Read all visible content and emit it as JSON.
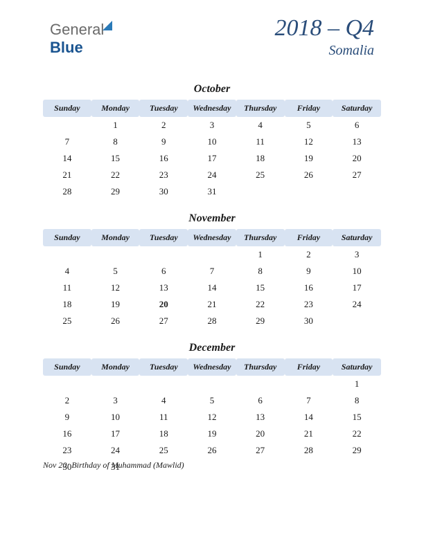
{
  "logo": {
    "part1": "General",
    "part2": "Blue"
  },
  "header": {
    "title": "2018 – Q4",
    "subtitle": "Somalia"
  },
  "dayHeaders": [
    "Sunday",
    "Monday",
    "Tuesday",
    "Wednesday",
    "Thursday",
    "Friday",
    "Saturday"
  ],
  "colors": {
    "header_bg": "#d8e3f2",
    "text": "#1a1a1a",
    "title": "#2a4d7a",
    "holiday": "#c62828",
    "page_bg": "#ffffff"
  },
  "months": [
    {
      "name": "October",
      "weeks": [
        [
          "",
          "1",
          "2",
          "3",
          "4",
          "5",
          "6"
        ],
        [
          "7",
          "8",
          "9",
          "10",
          "11",
          "12",
          "13"
        ],
        [
          "14",
          "15",
          "16",
          "17",
          "18",
          "19",
          "20"
        ],
        [
          "21",
          "22",
          "23",
          "24",
          "25",
          "26",
          "27"
        ],
        [
          "28",
          "29",
          "30",
          "31",
          "",
          "",
          ""
        ]
      ],
      "holidays": []
    },
    {
      "name": "November",
      "weeks": [
        [
          "",
          "",
          "",
          "",
          "1",
          "2",
          "3"
        ],
        [
          "4",
          "5",
          "6",
          "7",
          "8",
          "9",
          "10"
        ],
        [
          "11",
          "12",
          "13",
          "14",
          "15",
          "16",
          "17"
        ],
        [
          "18",
          "19",
          "20",
          "21",
          "22",
          "23",
          "24"
        ],
        [
          "25",
          "26",
          "27",
          "28",
          "29",
          "30",
          ""
        ]
      ],
      "holidays": [
        "20"
      ]
    },
    {
      "name": "December",
      "weeks": [
        [
          "",
          "",
          "",
          "",
          "",
          "",
          "1"
        ],
        [
          "2",
          "3",
          "4",
          "5",
          "6",
          "7",
          "8"
        ],
        [
          "9",
          "10",
          "11",
          "12",
          "13",
          "14",
          "15"
        ],
        [
          "16",
          "17",
          "18",
          "19",
          "20",
          "21",
          "22"
        ],
        [
          "23",
          "24",
          "25",
          "26",
          "27",
          "28",
          "29"
        ],
        [
          "30",
          "31",
          "",
          "",
          "",
          "",
          ""
        ]
      ],
      "holidays": []
    }
  ],
  "footnote": "Nov 20: Birthday of Muhammad (Mawlid)"
}
